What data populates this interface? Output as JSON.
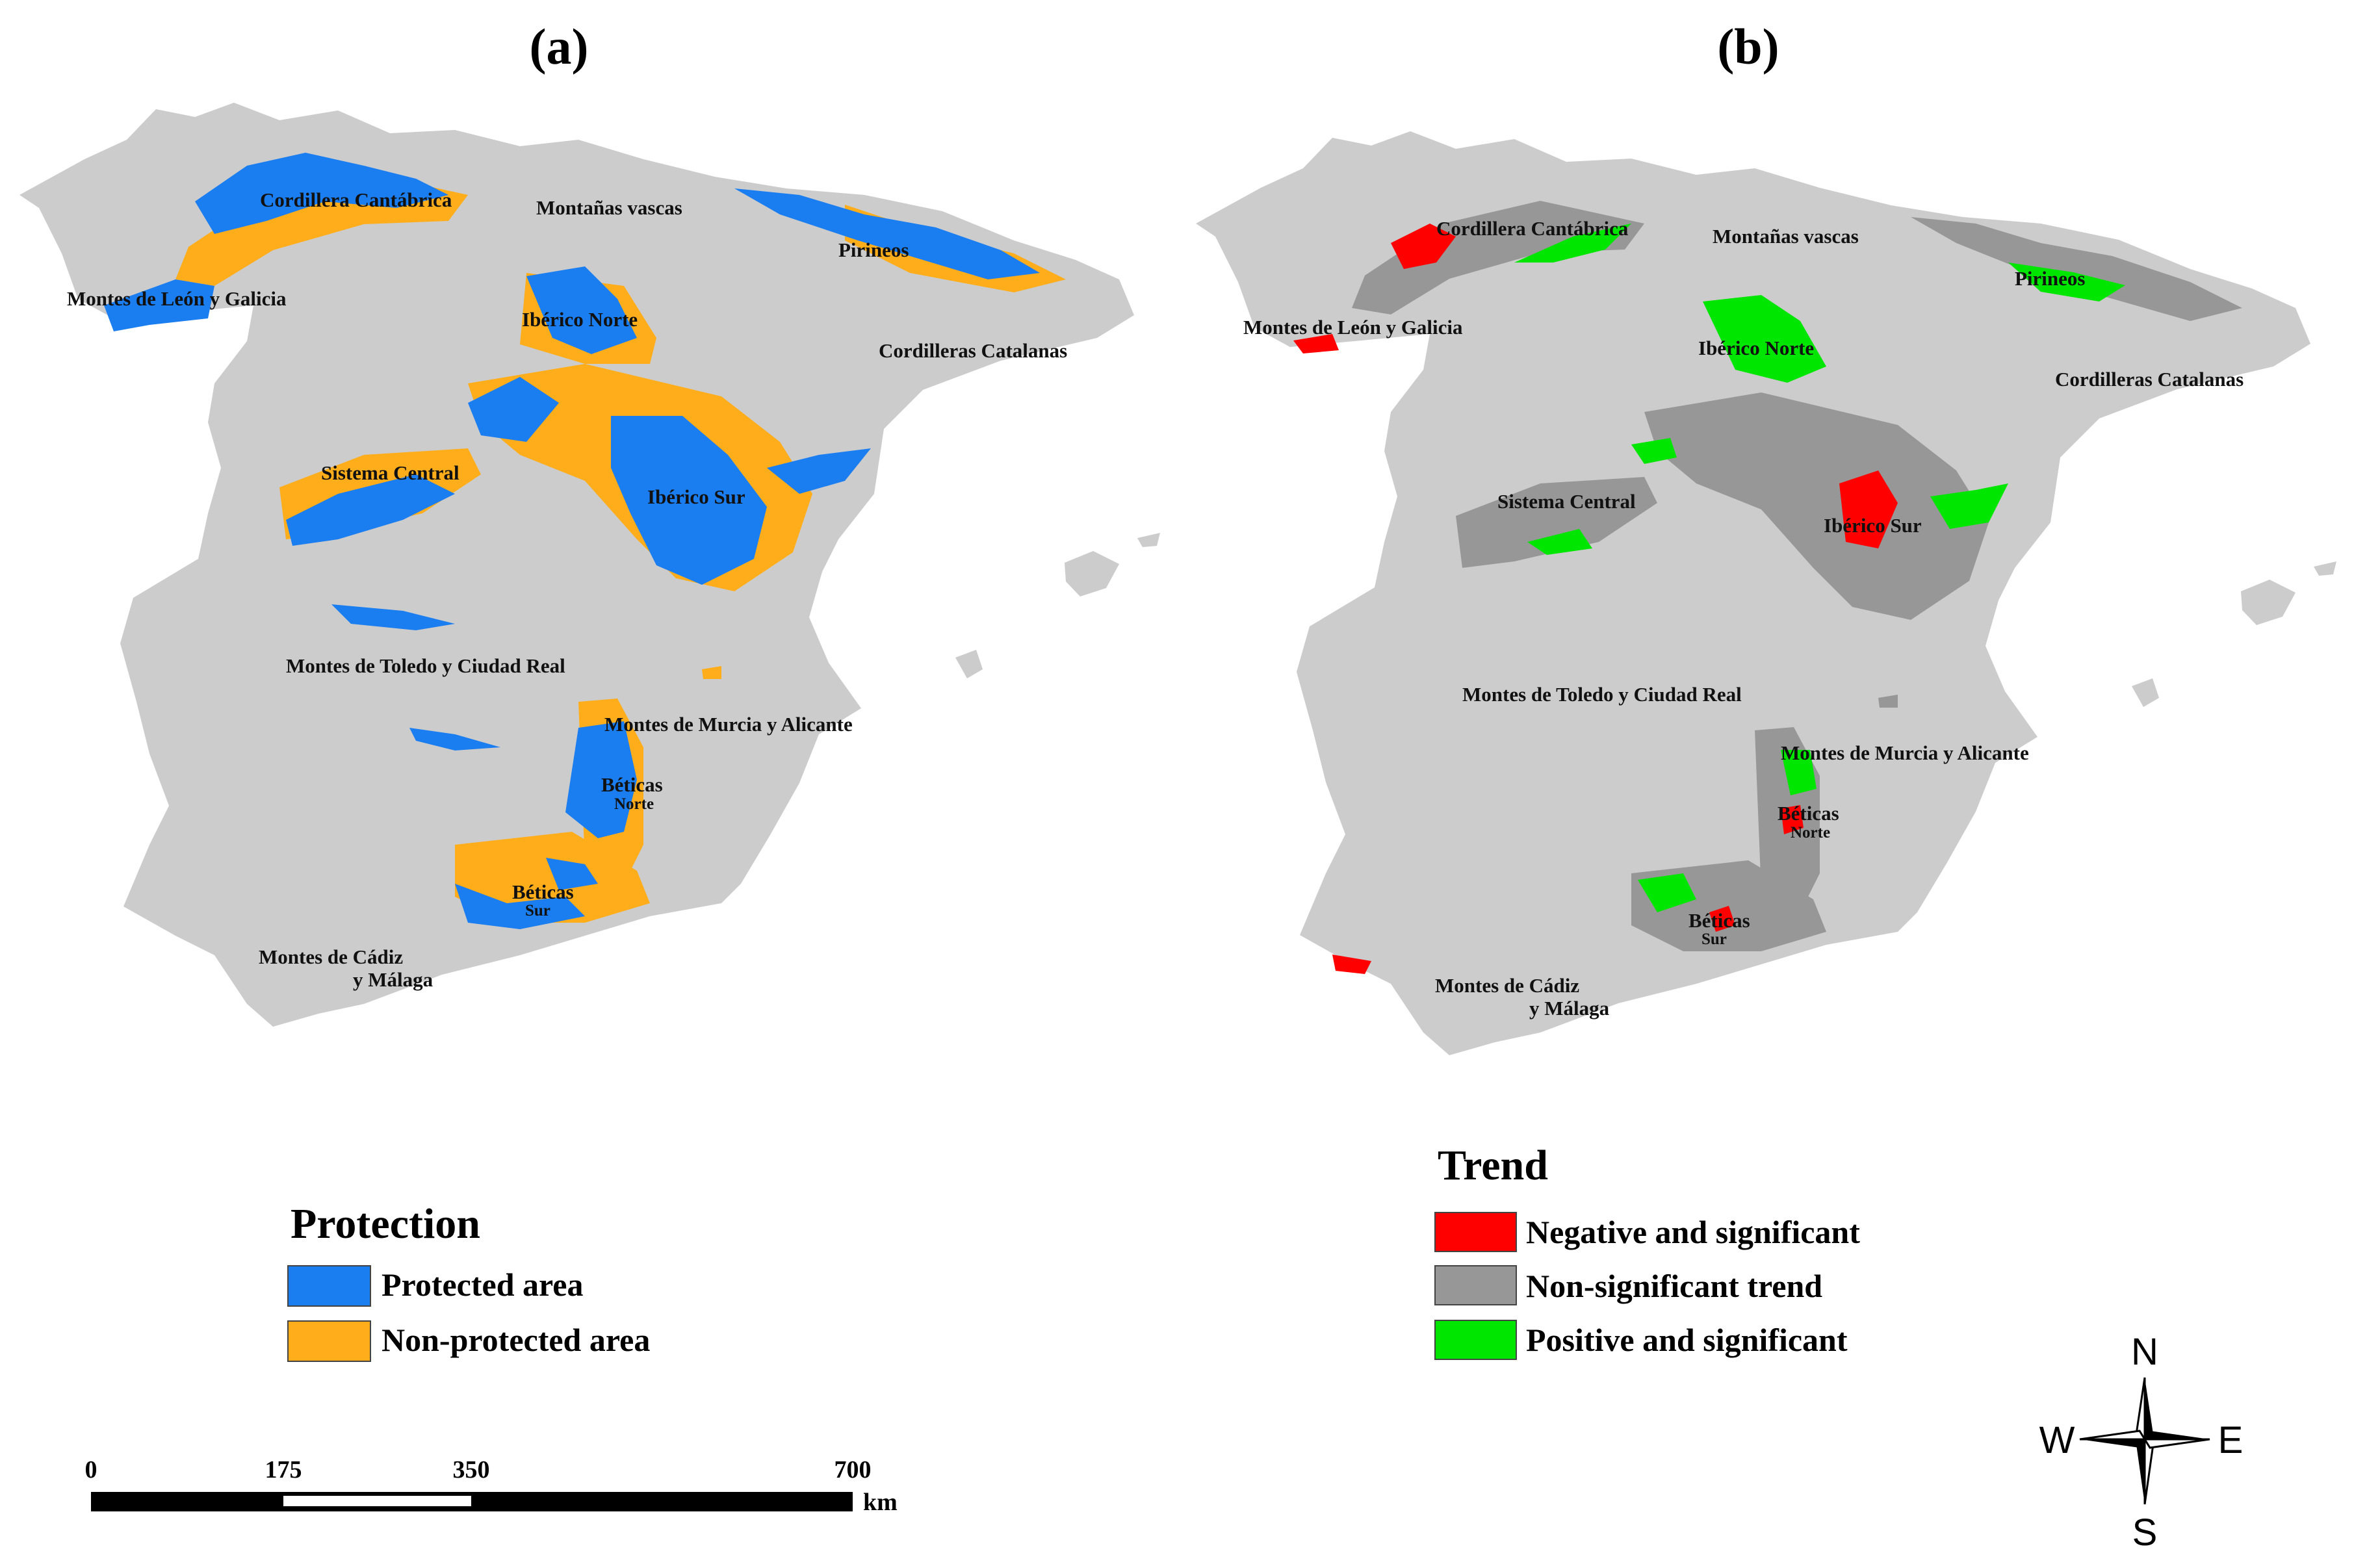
{
  "panels": [
    {
      "label": "(a)",
      "regions": [
        {
          "name": "Cordillera Cantábrica"
        },
        {
          "name": "Montañas vascas"
        },
        {
          "name": "Pirineos"
        },
        {
          "name": "Montes de León y Galicia"
        },
        {
          "name": "Ibérico Norte"
        },
        {
          "name": "Cordilleras Catalanas"
        },
        {
          "name": "Sistema Central"
        },
        {
          "name": "Ibérico Sur"
        },
        {
          "name": "Montes de Toledo y Ciudad Real"
        },
        {
          "name": "Montes de Murcia y Alicante"
        },
        {
          "name": "Béticas",
          "sub": "Norte"
        },
        {
          "name": "Béticas",
          "sub": "Sur"
        },
        {
          "name": "Montes de Cádiz",
          "sub": "y Málaga"
        }
      ]
    },
    {
      "label": "(b)",
      "regions": [
        {
          "name": "Cordillera Cantábrica"
        },
        {
          "name": "Montañas vascas"
        },
        {
          "name": "Pirineos"
        },
        {
          "name": "Montes de León y Galicia"
        },
        {
          "name": "Ibérico Norte"
        },
        {
          "name": "Cordilleras Catalanas"
        },
        {
          "name": "Sistema Central"
        },
        {
          "name": "Ibérico Sur"
        },
        {
          "name": "Montes de Toledo y Ciudad Real"
        },
        {
          "name": "Montes de Murcia y Alicante"
        },
        {
          "name": "Béticas",
          "sub": "Norte"
        },
        {
          "name": "Béticas",
          "sub": "Sur"
        },
        {
          "name": "Montes de Cádiz",
          "sub": "y Málaga"
        }
      ]
    }
  ],
  "legend_protection": {
    "title": "Protection",
    "items": [
      {
        "label": "Protected area",
        "color": "#1a7df0"
      },
      {
        "label": "Non-protected area",
        "color": "#ffad1a"
      }
    ]
  },
  "legend_trend": {
    "title": "Trend",
    "items": [
      {
        "label": "Negative and significant",
        "color": "#ff0000"
      },
      {
        "label": "Non-significant trend",
        "color": "#979797"
      },
      {
        "label": "Positive and significant",
        "color": "#00e600"
      }
    ]
  },
  "scale_bar": {
    "ticks": [
      "0",
      "175",
      "350",
      "700"
    ],
    "unit": "km"
  },
  "compass": {
    "n": "N",
    "s": "S",
    "e": "E",
    "w": "W"
  },
  "colors": {
    "land": "#cccccc"
  }
}
